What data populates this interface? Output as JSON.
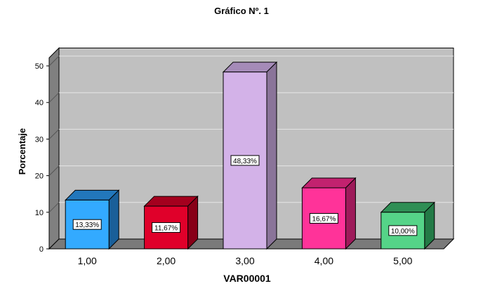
{
  "chart_data": {
    "type": "bar",
    "title": "Gráfico Nº. 1",
    "xlabel": "VAR00001",
    "ylabel": "Porcentaje",
    "ylim": [
      0,
      50
    ],
    "yticks": [
      "0",
      "10",
      "20",
      "30",
      "40",
      "50"
    ],
    "grid": true,
    "categories": [
      "1,00",
      "2,00",
      "3,00",
      "4,00",
      "5,00"
    ],
    "values": [
      13.33,
      11.67,
      48.33,
      16.67,
      10.0
    ],
    "data_labels": [
      "13,33%",
      "11,67%",
      "48,33%",
      "16,67%",
      "10,00%"
    ],
    "colors": [
      {
        "front": "#33aaff",
        "top": "#2277bb",
        "side": "#1a5f99"
      },
      {
        "front": "#e0002a",
        "top": "#a4001e",
        "side": "#880018"
      },
      {
        "front": "#d3b2e8",
        "top": "#a58bb8",
        "side": "#8a7499"
      },
      {
        "front": "#ff3399",
        "top": "#c2226f",
        "side": "#9e1a5a"
      },
      {
        "front": "#55d488",
        "top": "#2f8f55",
        "side": "#237a46"
      }
    ],
    "plot_colors": {
      "back_wall": "#c0c0c0",
      "floor": "#7a7a7a",
      "left_wall": "#808080",
      "grid": "#e6e6e6"
    }
  }
}
